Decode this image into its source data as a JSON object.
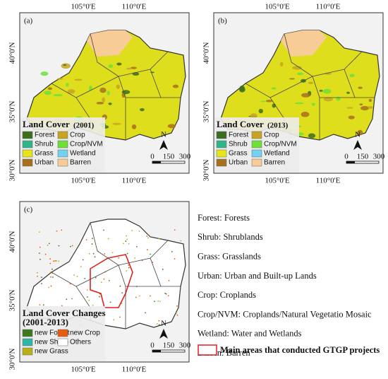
{
  "panels": [
    {
      "label": "(a)",
      "top_ticks": [
        "105°0'E",
        "110°0'E"
      ],
      "left_ticks": [
        "40°0'N",
        "35°0'N",
        "30°0'N"
      ],
      "bottom_ticks": [
        "105°0'E",
        "110°0'E"
      ],
      "legend_title": "Land Cover",
      "legend_subtitle": "(2001)",
      "legend_items": [
        {
          "name": "Forest",
          "color": "#3d6e1e"
        },
        {
          "name": "Shrub",
          "color": "#2fb58a"
        },
        {
          "name": "Grass",
          "color": "#e5e51a"
        },
        {
          "name": "Urban",
          "color": "#a8701c"
        },
        {
          "name": "Crop",
          "color": "#c8a422"
        },
        {
          "name": "Crop/NVM",
          "color": "#6de03a"
        },
        {
          "name": "Wetland",
          "color": "#73d2f0"
        },
        {
          "name": "Barren",
          "color": "#f7cc96"
        }
      ],
      "north": "N",
      "scale_labels": [
        "0",
        "150",
        "300"
      ]
    },
    {
      "label": "(b)",
      "top_ticks": [
        "105°0'E",
        "110°0'E"
      ],
      "left_ticks": [
        "40°0'N",
        "35°0'N",
        "30°0'N"
      ],
      "bottom_ticks": [
        "105°0'E",
        "110°0'E"
      ],
      "legend_title": "Land Cover",
      "legend_subtitle": "(2013)",
      "legend_items": [
        {
          "name": "Forest",
          "color": "#3d6e1e"
        },
        {
          "name": "Shrub",
          "color": "#2fb58a"
        },
        {
          "name": "Grass",
          "color": "#e5e51a"
        },
        {
          "name": "Urban",
          "color": "#a8701c"
        },
        {
          "name": "Crop",
          "color": "#c8a422"
        },
        {
          "name": "Crop/NVM",
          "color": "#6de03a"
        },
        {
          "name": "Wetland",
          "color": "#73d2f0"
        },
        {
          "name": "Barren",
          "color": "#f7cc96"
        }
      ],
      "north": "N",
      "scale_labels": [
        "0",
        "150",
        "300"
      ]
    },
    {
      "label": "(c)",
      "top_ticks": [],
      "left_ticks": [
        "40°0'N",
        "35°0'N",
        "30°0'N"
      ],
      "bottom_ticks": [
        "105°0'E",
        "110°0'E"
      ],
      "legend_title": "Land Cover Changes",
      "legend_subtitle": "(2001-2013)",
      "legend_items": [
        {
          "name": "new Forest",
          "color": "#3d7a1e"
        },
        {
          "name": "new Shrub",
          "color": "#2fb5a8"
        },
        {
          "name": "new Grass",
          "color": "#b8b01a"
        },
        {
          "name": "new Crop",
          "color": "#e85c10"
        },
        {
          "name": "Others",
          "color": "#ffffff"
        }
      ],
      "north": "N",
      "scale_labels": [
        "0",
        "150",
        "300"
      ]
    }
  ],
  "definitions": [
    "Forest: Forests",
    "Shrub: Shrublands",
    "Grass: Grasslands",
    "Urban: Urban and Built-up Lands",
    "Crop: Croplands",
    "Crop/NVM: Croplands/Natural Vegetatio Mosaic",
    "Wetland: Water and Wetlands",
    "Barren: Barren"
  ],
  "gtgp_note": "Main areas that conducted GTGP projects"
}
